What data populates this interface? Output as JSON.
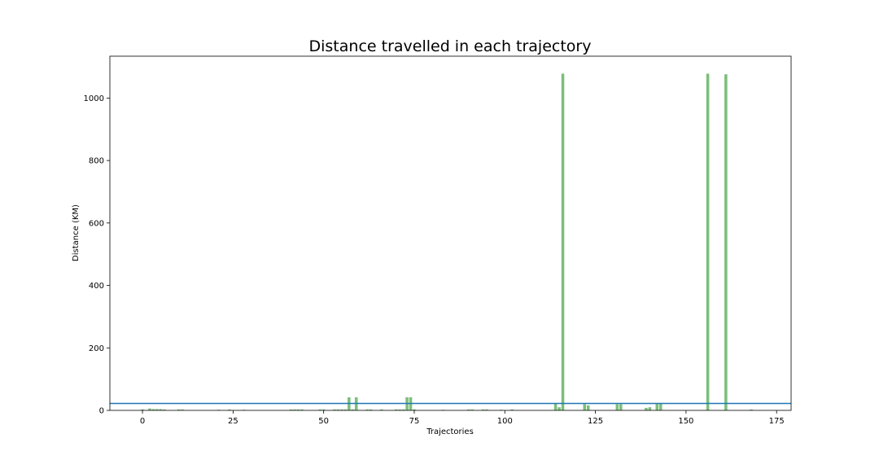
{
  "chart_data": {
    "type": "bar",
    "title": "Distance travelled in each trajectory",
    "xlabel": "Trajectories",
    "ylabel": "Distance (KM)",
    "xlim": [
      -9,
      179
    ],
    "ylim": [
      0,
      1134
    ],
    "x_ticks": [
      0,
      25,
      50,
      75,
      100,
      125,
      150,
      175
    ],
    "y_ticks": [
      0,
      200,
      400,
      600,
      800,
      1000
    ],
    "grid": false,
    "bar_color": "#7bbf7b",
    "reference_line": {
      "y": 22,
      "color": "#1f77b4"
    },
    "series": [
      {
        "x": [
          0,
          2,
          3,
          4,
          5,
          6,
          10,
          11,
          21,
          24,
          28,
          41,
          42,
          43,
          44,
          49,
          50,
          53,
          54,
          55,
          56,
          57,
          58,
          59,
          62,
          63,
          66,
          70,
          71,
          72,
          73,
          74,
          75,
          83,
          90,
          91,
          94,
          95,
          99,
          102,
          114,
          115,
          116,
          122,
          123,
          131,
          132,
          139,
          140,
          142,
          143,
          156,
          161,
          168
        ],
        "values": [
          3,
          6,
          4,
          4,
          4,
          3,
          3,
          3,
          2,
          3,
          2,
          3,
          3,
          3,
          3,
          3,
          3,
          3,
          3,
          3,
          3,
          42,
          3,
          42,
          3,
          3,
          3,
          3,
          3,
          3,
          42,
          42,
          3,
          2,
          3,
          3,
          3,
          3,
          2,
          3,
          22,
          10,
          1078,
          20,
          16,
          20,
          20,
          8,
          10,
          22,
          22,
          1078,
          1076,
          3
        ]
      }
    ]
  }
}
